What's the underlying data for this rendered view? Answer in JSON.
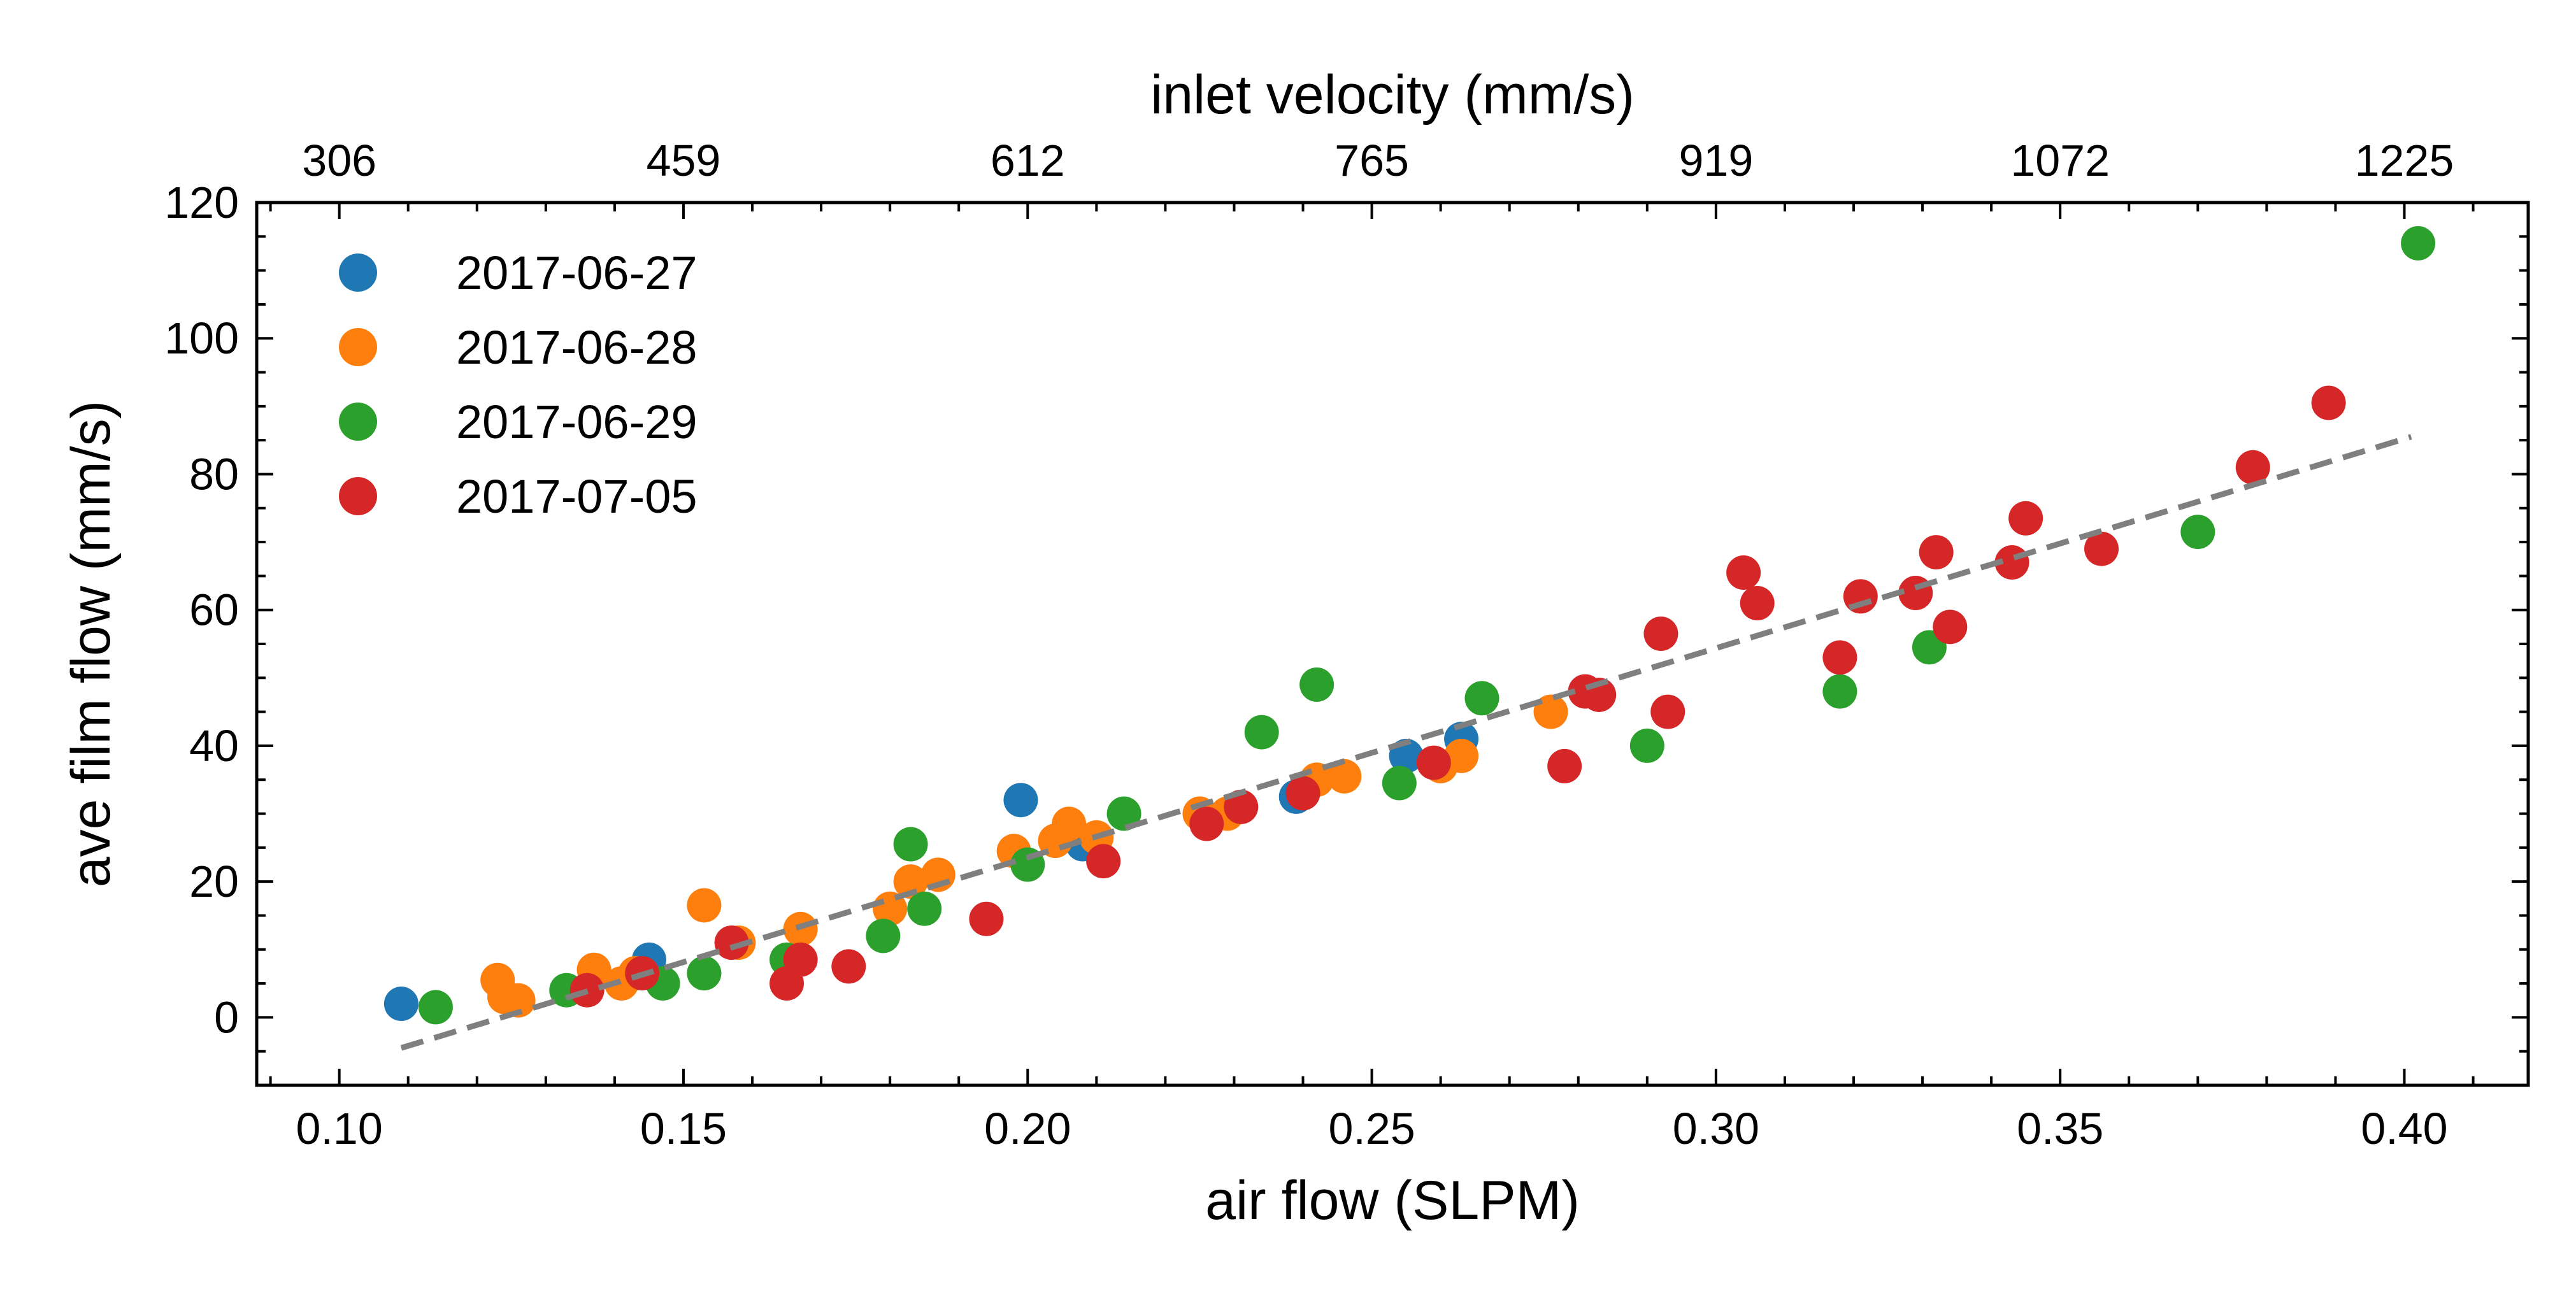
{
  "chart_data": {
    "type": "scatter",
    "title": "",
    "xlabel": "air flow (SLPM)",
    "ylabel": "ave film flow (mm/s)",
    "x2label": "inlet velocity (mm/s)",
    "xlim": [
      0.088,
      0.418
    ],
    "ylim": [
      -10,
      120
    ],
    "xticks": [
      0.1,
      0.15,
      0.2,
      0.25,
      0.3,
      0.35,
      0.4
    ],
    "xtick_labels": [
      "0.10",
      "0.15",
      "0.20",
      "0.25",
      "0.30",
      "0.35",
      "0.40"
    ],
    "yticks": [
      0,
      20,
      40,
      60,
      80,
      100,
      120
    ],
    "ytick_labels": [
      "0",
      "20",
      "40",
      "60",
      "80",
      "100",
      "120"
    ],
    "x2ticks": [
      0.1,
      0.15,
      0.2,
      0.25,
      0.3,
      0.35,
      0.4
    ],
    "x2tick_labels": [
      "306",
      "459",
      "612",
      "765",
      "919",
      "1072",
      "1225"
    ],
    "grid": false,
    "legend_position": "top-left",
    "series": [
      {
        "name": "2017-06-27",
        "color": "#1f77b4",
        "points": [
          [
            0.109,
            2
          ],
          [
            0.145,
            8.5
          ],
          [
            0.199,
            32
          ],
          [
            0.208,
            25.5
          ],
          [
            0.239,
            32.5
          ],
          [
            0.255,
            38.5
          ],
          [
            0.263,
            41
          ]
        ]
      },
      {
        "name": "2017-06-28",
        "color": "#ff7f0e",
        "points": [
          [
            0.123,
            5.5
          ],
          [
            0.124,
            3
          ],
          [
            0.126,
            2.5
          ],
          [
            0.137,
            7
          ],
          [
            0.141,
            5
          ],
          [
            0.143,
            6.5
          ],
          [
            0.153,
            16.5
          ],
          [
            0.158,
            11
          ],
          [
            0.167,
            13
          ],
          [
            0.18,
            16
          ],
          [
            0.183,
            20
          ],
          [
            0.187,
            21
          ],
          [
            0.198,
            24.5
          ],
          [
            0.204,
            26
          ],
          [
            0.206,
            28.5
          ],
          [
            0.21,
            26.5
          ],
          [
            0.225,
            30
          ],
          [
            0.229,
            30
          ],
          [
            0.242,
            35
          ],
          [
            0.246,
            35.5
          ],
          [
            0.26,
            37
          ],
          [
            0.263,
            38.5
          ],
          [
            0.276,
            45
          ]
        ]
      },
      {
        "name": "2017-06-29",
        "color": "#2ca02c",
        "points": [
          [
            0.114,
            1.5
          ],
          [
            0.133,
            4
          ],
          [
            0.147,
            5
          ],
          [
            0.153,
            6.5
          ],
          [
            0.165,
            8.5
          ],
          [
            0.179,
            12
          ],
          [
            0.183,
            25.5
          ],
          [
            0.185,
            16
          ],
          [
            0.2,
            22.5
          ],
          [
            0.214,
            30
          ],
          [
            0.234,
            42
          ],
          [
            0.242,
            49
          ],
          [
            0.254,
            34.5
          ],
          [
            0.266,
            47
          ],
          [
            0.29,
            40
          ],
          [
            0.318,
            48
          ],
          [
            0.331,
            54.5
          ],
          [
            0.37,
            71.5
          ],
          [
            0.402,
            114
          ]
        ]
      },
      {
        "name": "2017-07-05",
        "color": "#d62728",
        "points": [
          [
            0.136,
            4
          ],
          [
            0.144,
            6.5
          ],
          [
            0.157,
            11
          ],
          [
            0.165,
            5
          ],
          [
            0.167,
            8.5
          ],
          [
            0.174,
            7.5
          ],
          [
            0.194,
            14.5
          ],
          [
            0.211,
            23
          ],
          [
            0.226,
            28.5
          ],
          [
            0.231,
            31
          ],
          [
            0.24,
            33
          ],
          [
            0.259,
            37.5
          ],
          [
            0.278,
            37
          ],
          [
            0.281,
            48
          ],
          [
            0.283,
            47.5
          ],
          [
            0.292,
            56.5
          ],
          [
            0.293,
            45
          ],
          [
            0.304,
            65.5
          ],
          [
            0.306,
            61
          ],
          [
            0.318,
            53
          ],
          [
            0.321,
            62
          ],
          [
            0.329,
            62.5
          ],
          [
            0.332,
            68.5
          ],
          [
            0.334,
            57.5
          ],
          [
            0.343,
            67
          ],
          [
            0.345,
            73.5
          ],
          [
            0.356,
            69
          ],
          [
            0.378,
            81
          ],
          [
            0.389,
            90.5
          ]
        ]
      }
    ],
    "fit_line": {
      "style": "dashed",
      "color": "#7f7f7f",
      "x": [
        0.109,
        0.401
      ],
      "y": [
        -4.5,
        85.5
      ]
    }
  }
}
